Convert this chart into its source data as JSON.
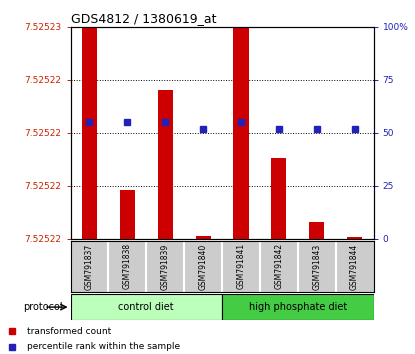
{
  "title": "GDS4812 / 1380619_at",
  "samples": [
    "GSM791837",
    "GSM791838",
    "GSM791839",
    "GSM791840",
    "GSM791841",
    "GSM791842",
    "GSM791843",
    "GSM791844"
  ],
  "bar_heights_norm": [
    1.0,
    0.23,
    0.7,
    0.015,
    1.0,
    0.38,
    0.08,
    0.01
  ],
  "blue_pct_vals": [
    55,
    55,
    55,
    52,
    55,
    52,
    52,
    52
  ],
  "ytick_pos": [
    0.0,
    0.25,
    0.5,
    0.75,
    1.0
  ],
  "ytick_labels_L": [
    "7.52522",
    "7.52522",
    "7.52522",
    "7.52522",
    "7.52523"
  ],
  "ytick_labels_R": [
    "0",
    "25",
    "50",
    "75",
    "100%"
  ],
  "bar_color": "#cc0000",
  "blue_color": "#2222bb",
  "left_axis_color": "#cc2200",
  "right_axis_color": "#2222bb",
  "ctrl_color": "#bbffbb",
  "hp_color": "#44cc44",
  "grid_vals": [
    0.25,
    0.5,
    0.75
  ],
  "tick_label_fontsize": 6.5,
  "title_fontsize": 9,
  "bar_width": 0.4
}
